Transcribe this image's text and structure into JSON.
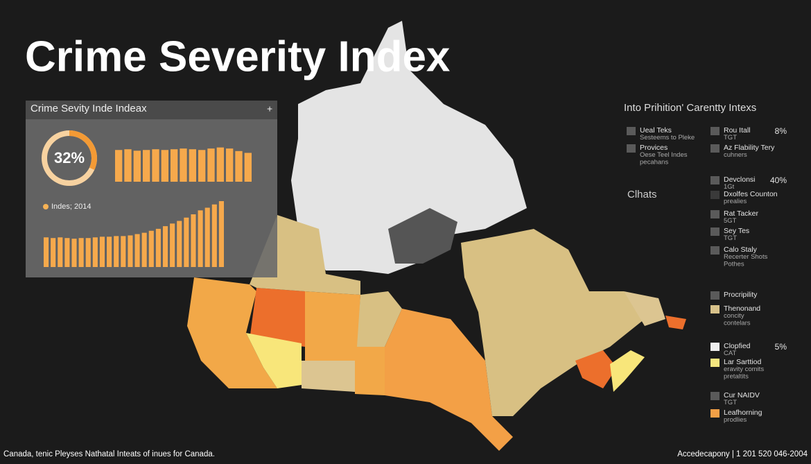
{
  "title": "Crime Severity Index",
  "panel": {
    "title": "Crime Sevity Inde Indeax",
    "add_button": "+",
    "donut": {
      "value": 32,
      "label": "32%"
    },
    "top_bars": [
      88,
      90,
      86,
      88,
      90,
      88,
      90,
      92,
      90,
      88,
      92,
      95,
      92,
      85,
      80
    ],
    "legend_label": "Indes; 2014",
    "bottom_bars": [
      45,
      44,
      45,
      44,
      43,
      44,
      44,
      45,
      46,
      46,
      47,
      47,
      48,
      50,
      52,
      55,
      58,
      62,
      66,
      70,
      75,
      80,
      86,
      90,
      95,
      100
    ]
  },
  "map_label": "Clhats",
  "legend": {
    "title": "Into Prihition' Carentty Intexs",
    "items": [
      {
        "lines": [
          "Ueal Teks",
          "Sesteems to Pleke"
        ],
        "color": "#5a5a5a"
      },
      {
        "lines": [
          "Provices",
          "Oese Teel Indes",
          "pecahans"
        ],
        "color": "#5a5a5a"
      },
      {
        "lines": [
          "Rou Itall",
          "TGT"
        ],
        "pct": "8%",
        "color": "#5a5a5a"
      },
      {
        "lines": [
          "Az Flability Tery",
          "cuhners"
        ],
        "color": "#5a5a5a"
      },
      {
        "lines": [
          "Devclonsi",
          "1Gt"
        ],
        "pct": "40%",
        "color": "#5a5a5a"
      },
      {
        "lines": [
          "Dxolfes Counton",
          "prealies"
        ],
        "color": "#3a3a3a"
      },
      {
        "lines": [
          "Rat Tacker",
          "5GT"
        ],
        "color": "#5a5a5a"
      },
      {
        "lines": [
          "Sey Tes",
          "TGT"
        ],
        "color": "#5a5a5a"
      },
      {
        "lines": [
          "Calo Staly",
          "Recerter Shots",
          "Pothes"
        ],
        "color": "#5a5a5a"
      },
      {
        "lines": [
          "Procripility"
        ],
        "color": "#5a5a5a"
      },
      {
        "lines": [
          "Thenonand",
          "concity",
          "contelars"
        ],
        "color": "#d8c28a"
      },
      {
        "lines": [
          "Clopfied",
          "CAT"
        ],
        "pct": "5%",
        "color": "#eeeeee"
      },
      {
        "lines": [
          "Lar Sarttiod",
          "eravity comits",
          "pretaltits"
        ],
        "color": "#f5e680"
      },
      {
        "lines": [
          "Cur NAIDV",
          "TGT"
        ],
        "color": "#5a5a5a"
      },
      {
        "lines": [
          "Leafhorning",
          "prodlies"
        ],
        "color": "#f3a046"
      }
    ]
  },
  "footer": {
    "left": "Canada, tenic Pleyses Nathatal Inteats of inues for Canada.",
    "right": "Accedecapony | 1 201 520 046-2004"
  }
}
